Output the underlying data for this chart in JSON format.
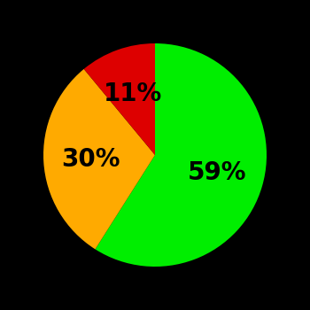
{
  "slices": [
    59,
    30,
    11
  ],
  "colors": [
    "#00ee00",
    "#ffaa00",
    "#dd0000"
  ],
  "labels": [
    "59%",
    "30%",
    "11%"
  ],
  "background_color": "#000000",
  "text_color": "#000000",
  "startangle": 90,
  "counterclock": false,
  "font_size": 20,
  "font_weight": "bold",
  "label_r": 0.58
}
